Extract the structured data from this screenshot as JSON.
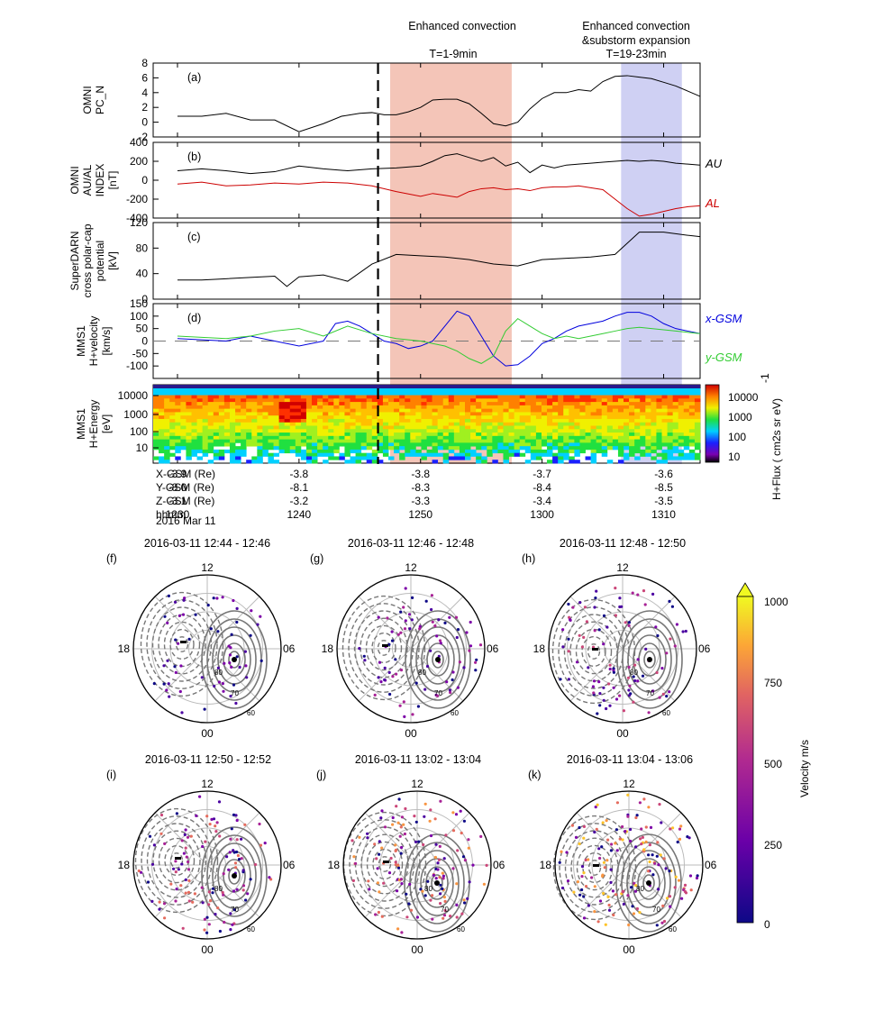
{
  "annotations": {
    "enhanced_1": "Enhanced convection",
    "interval_1": "T=1-9min",
    "enhanced_2": "Enhanced convection",
    "enhanced_2b": "&substorm expansion",
    "interval_2": "T=19-23min"
  },
  "highlight_colors": {
    "red": "#f4c5b8",
    "blue": "#cfd0f3",
    "dashed_line": "#000000"
  },
  "time_axis": {
    "rows": [
      {
        "label": "X-GSM (Re)",
        "values": [
          "-3.9",
          "-3.8",
          "-3.8",
          "-3.7",
          "-3.6"
        ]
      },
      {
        "label": "Y-GSM (Re)",
        "values": [
          "-8.0",
          "-8.1",
          "-8.3",
          "-8.4",
          "-8.5"
        ]
      },
      {
        "label": "Z-GSM (Re)",
        "values": [
          "-3.1",
          "-3.2",
          "-3.3",
          "-3.4",
          "-3.5"
        ]
      },
      {
        "label": "hhmm",
        "values": [
          "1230",
          "1240",
          "1250",
          "1300",
          "1310"
        ]
      }
    ],
    "date": "2016 Mar 11",
    "ticks_minutes": [
      0,
      10,
      20,
      30,
      40
    ],
    "start": "1228",
    "end": "1311",
    "event_minute": 16.5,
    "red_band_minutes": [
      17.5,
      27.5
    ],
    "blue_band_minutes": [
      36.5,
      41.5
    ]
  },
  "chart_data": [
    {
      "id": "a",
      "panel": "(a)",
      "type": "line",
      "ylabel": [
        "OMNI",
        "PC_N"
      ],
      "ylim": [
        -2,
        8
      ],
      "yticks": [
        -2,
        0,
        2,
        4,
        6,
        8
      ],
      "series": [
        {
          "name": "PC_N",
          "color": "#000000",
          "x": [
            0,
            2,
            4,
            6,
            8,
            10,
            12,
            13.5,
            15,
            16,
            17,
            18,
            19,
            20,
            21,
            22,
            23,
            24,
            25,
            26,
            27,
            28,
            29,
            30,
            31,
            32,
            33,
            34,
            35,
            36,
            37,
            38,
            39,
            40,
            41,
            42,
            43
          ],
          "values": [
            0.8,
            0.8,
            1.2,
            0.3,
            0.3,
            -1.3,
            -0.2,
            0.8,
            1.2,
            1.3,
            1,
            1,
            1.4,
            2,
            3,
            3.1,
            3.1,
            2.5,
            1.2,
            -0.2,
            -0.5,
            0,
            1.8,
            3.2,
            4,
            4,
            4.4,
            4.2,
            5.5,
            6.2,
            6.3,
            6.1,
            5.9,
            5.4,
            4.9,
            4.2,
            3.5
          ]
        }
      ]
    },
    {
      "id": "b",
      "panel": "(b)",
      "type": "line",
      "ylabel": [
        "OMNI",
        "AU/AL",
        "INDEX",
        "[nT]"
      ],
      "ylim": [
        -400,
        400
      ],
      "yticks": [
        -400,
        -200,
        0,
        200,
        400
      ],
      "series": [
        {
          "name": "AU",
          "color": "#000000",
          "x": [
            0,
            2,
            4,
            6,
            8,
            10,
            12,
            14,
            16,
            18,
            20,
            21,
            22,
            23,
            24,
            25,
            26,
            27,
            28,
            29,
            30,
            31,
            32,
            33,
            34,
            35,
            36,
            37,
            38,
            39,
            40,
            41,
            42,
            43
          ],
          "values": [
            100,
            120,
            100,
            70,
            90,
            150,
            120,
            100,
            120,
            130,
            150,
            200,
            260,
            280,
            240,
            200,
            240,
            150,
            190,
            80,
            160,
            130,
            160,
            170,
            180,
            190,
            200,
            210,
            200,
            210,
            200,
            180,
            170,
            160
          ]
        },
        {
          "name": "AL",
          "color": "#cc0000",
          "x": [
            0,
            2,
            4,
            6,
            8,
            10,
            12,
            14,
            16,
            18,
            20,
            21,
            22,
            23,
            24,
            25,
            26,
            27,
            28,
            29,
            30,
            31,
            32,
            33,
            34,
            35,
            36,
            37,
            38,
            39,
            40,
            41,
            42,
            43
          ],
          "values": [
            -40,
            -20,
            -60,
            -50,
            -30,
            -40,
            -20,
            -30,
            -60,
            -120,
            -170,
            -140,
            -160,
            -180,
            -120,
            -90,
            -80,
            -100,
            -90,
            -110,
            -80,
            -70,
            -70,
            -60,
            -80,
            -100,
            -200,
            -300,
            -380,
            -360,
            -330,
            -300,
            -280,
            -270
          ]
        }
      ],
      "series_labels": [
        "AU",
        "AL"
      ]
    },
    {
      "id": "c",
      "panel": "(c)",
      "type": "line",
      "ylabel": [
        "SuperDARN",
        "cross polar-cap",
        "potential",
        "[kV]"
      ],
      "ylim": [
        0,
        120
      ],
      "yticks": [
        0,
        40,
        80,
        120
      ],
      "series": [
        {
          "name": "CPCP",
          "color": "#000000",
          "x": [
            0,
            2,
            4,
            6,
            8,
            9,
            10,
            12,
            14,
            16,
            18,
            20,
            22,
            24,
            26,
            28,
            30,
            32,
            34,
            36,
            38,
            40,
            42,
            43
          ],
          "values": [
            30,
            30,
            32,
            34,
            36,
            20,
            35,
            38,
            28,
            55,
            70,
            68,
            66,
            62,
            55,
            52,
            62,
            64,
            66,
            70,
            105,
            105,
            100,
            98
          ]
        }
      ]
    },
    {
      "id": "d",
      "panel": "(d)",
      "type": "line",
      "ylabel": [
        "MMS1",
        "H+velocity",
        "[km/s]"
      ],
      "ylim": [
        -150,
        150
      ],
      "yticks": [
        -100,
        -50,
        0,
        50,
        100,
        150
      ],
      "series": [
        {
          "name": "x-GSM",
          "color": "#0000dd",
          "x": [
            0,
            2,
            4,
            6,
            8,
            10,
            12,
            13,
            14,
            15,
            16,
            17,
            18,
            19,
            20,
            21,
            22,
            23,
            24,
            25,
            26,
            27,
            28,
            29,
            30,
            31,
            32,
            33,
            34,
            35,
            36,
            37,
            38,
            39,
            40,
            41,
            42,
            43
          ],
          "values": [
            10,
            5,
            0,
            20,
            0,
            -20,
            0,
            70,
            80,
            60,
            30,
            0,
            -10,
            -30,
            -20,
            0,
            60,
            120,
            100,
            20,
            -60,
            -100,
            -95,
            -60,
            -10,
            10,
            40,
            60,
            70,
            80,
            100,
            115,
            115,
            100,
            70,
            50,
            40,
            30
          ]
        },
        {
          "name": "y-GSM",
          "color": "#33cc33",
          "x": [
            0,
            2,
            4,
            6,
            8,
            10,
            12,
            14,
            16,
            18,
            20,
            22,
            23,
            24,
            25,
            26,
            27,
            28,
            29,
            30,
            31,
            32,
            33,
            34,
            35,
            36,
            37,
            38,
            39,
            40,
            41,
            42,
            43
          ],
          "values": [
            20,
            15,
            10,
            20,
            40,
            50,
            20,
            60,
            30,
            10,
            0,
            -20,
            -40,
            -70,
            -90,
            -60,
            40,
            90,
            60,
            30,
            10,
            20,
            10,
            20,
            30,
            40,
            50,
            55,
            50,
            45,
            40,
            35,
            30
          ]
        }
      ],
      "series_labels": [
        "x-GSM",
        "y-GSM"
      ]
    },
    {
      "id": "e",
      "panel": "(e)",
      "type": "heatmap",
      "ylabel": [
        "MMS1",
        "H+Energy",
        "[eV]"
      ],
      "ylim_log": [
        1,
        10000
      ],
      "yticks": [
        "10",
        "100",
        "1000",
        "10000"
      ],
      "colorbar": {
        "ticks": [
          "10",
          "100",
          "1000",
          "10000"
        ],
        "label": "H+Flux ( cm2s sr eV)",
        "exponent": "-1"
      }
    }
  ],
  "polar_maps": [
    {
      "panel": "(f)",
      "title": "2016-03-11 12:44 - 12:46"
    },
    {
      "panel": "(g)",
      "title": "2016-03-11 12:46 - 12:48"
    },
    {
      "panel": "(h)",
      "title": "2016-03-11 12:48 - 12:50"
    },
    {
      "panel": "(i)",
      "title": "2016-03-11 12:50 - 12:52"
    },
    {
      "panel": "(j)",
      "title": "2016-03-11 13:02 - 13:04"
    },
    {
      "panel": "(k)",
      "title": "2016-03-11 13:04 - 13:06"
    }
  ],
  "polar_labels": {
    "noon": "12",
    "dawn": "06",
    "dusk": "18",
    "midnight": "00",
    "lat80": "80",
    "lat70": "70",
    "lat60": "60"
  },
  "velocity_colorbar": {
    "label": "Velocity m/s",
    "ticks": [
      "0",
      "250",
      "500",
      "750",
      "1000"
    ]
  }
}
